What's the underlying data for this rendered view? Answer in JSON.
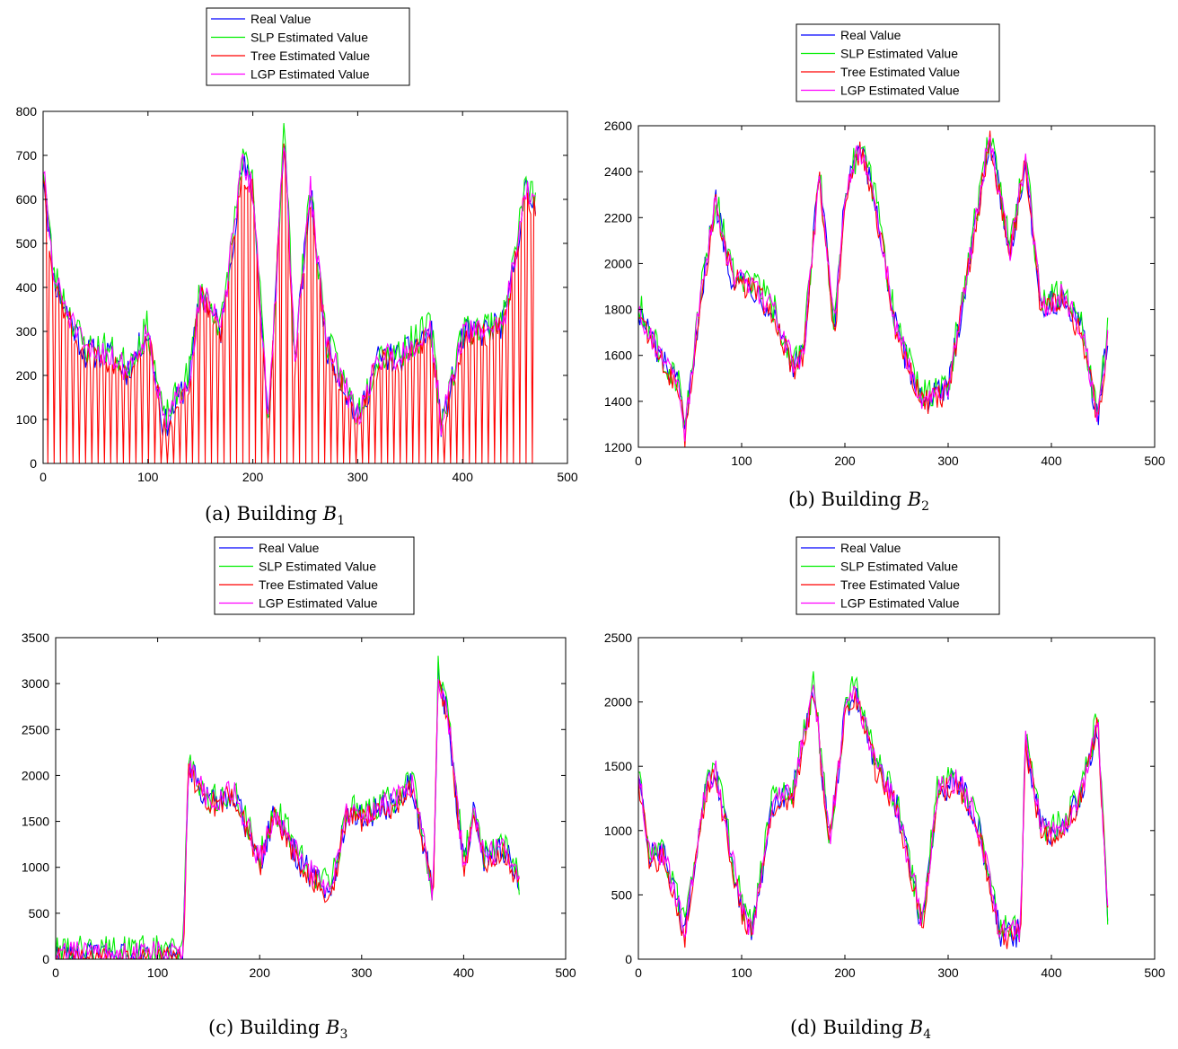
{
  "figure": {
    "panels": [
      {
        "id": "a",
        "caption_prefix": "(a) Building ",
        "caption_var": "B",
        "caption_sub": "1"
      },
      {
        "id": "b",
        "caption_prefix": "(b) Building ",
        "caption_var": "B",
        "caption_sub": "2"
      },
      {
        "id": "c",
        "caption_prefix": "(c) Building ",
        "caption_var": "B",
        "caption_sub": "3"
      },
      {
        "id": "d",
        "caption_prefix": "(d) Building ",
        "caption_var": "B",
        "caption_sub": "4"
      }
    ]
  },
  "colors": {
    "Real Value": "#0000ff",
    "SLP Estimated Value": "#00ee00",
    "Tree Estimated Value": "#ff0000",
    "LGP Estimated Value": "#ff00ff"
  },
  "chart_data": [
    {
      "type": "line",
      "title": "",
      "xlabel": "",
      "ylabel": "",
      "xlim": [
        0,
        500
      ],
      "ylim": [
        0,
        800
      ],
      "xticks": [
        0,
        100,
        200,
        300,
        400,
        500
      ],
      "yticks": [
        0,
        100,
        200,
        300,
        400,
        500,
        600,
        700,
        800
      ],
      "legend": [
        "Real Value",
        "SLP Estimated Value",
        "Tree Estimated Value",
        "LGP Estimated Value"
      ],
      "legend_placement": "top-center, above plot",
      "series_summary": {
        "Real Value": {
          "x": [
            0,
            10,
            20,
            40,
            60,
            80,
            100,
            115,
            140,
            150,
            170,
            190,
            200,
            215,
            230,
            240,
            255,
            270,
            300,
            320,
            340,
            370,
            380,
            400,
            420,
            440,
            460,
            470
          ],
          "y": [
            670,
            420,
            360,
            250,
            250,
            210,
            300,
            80,
            200,
            390,
            300,
            680,
            620,
            80,
            760,
            230,
            620,
            270,
            100,
            240,
            240,
            300,
            80,
            290,
            300,
            320,
            620,
            580
          ]
        }
      },
      "note": "Each series drops to 0 at every sample between sub-steps; traces overlap closely"
    },
    {
      "type": "line",
      "title": "",
      "xlabel": "",
      "ylabel": "",
      "xlim": [
        0,
        500
      ],
      "ylim": [
        1200,
        2600
      ],
      "xticks": [
        0,
        100,
        200,
        300,
        400,
        500
      ],
      "yticks": [
        1200,
        1400,
        1600,
        1800,
        2000,
        2200,
        2400,
        2600
      ],
      "legend": [
        "Real Value",
        "SLP Estimated Value",
        "Tree Estimated Value",
        "LGP Estimated Value"
      ],
      "legend_placement": "top-center, above plot",
      "series_summary": {
        "Real Value": {
          "x": [
            0,
            20,
            40,
            45,
            60,
            75,
            90,
            110,
            130,
            150,
            160,
            175,
            190,
            200,
            215,
            230,
            250,
            275,
            300,
            320,
            340,
            360,
            375,
            390,
            410,
            430,
            445,
            455
          ],
          "y": [
            1800,
            1600,
            1450,
            1240,
            1850,
            2270,
            1950,
            1900,
            1800,
            1550,
            1600,
            2400,
            1700,
            2300,
            2500,
            2250,
            1700,
            1400,
            1450,
            2000,
            2550,
            2050,
            2450,
            1800,
            1850,
            1700,
            1320,
            1700
          ]
        }
      },
      "note": "Traces overlap closely"
    },
    {
      "type": "line",
      "title": "",
      "xlabel": "",
      "ylabel": "",
      "xlim": [
        0,
        500
      ],
      "ylim": [
        0,
        3500
      ],
      "xticks": [
        0,
        100,
        200,
        300,
        400,
        500
      ],
      "yticks": [
        0,
        500,
        1000,
        1500,
        2000,
        2500,
        3000,
        3500
      ],
      "legend": [
        "Real Value",
        "SLP Estimated Value",
        "Tree Estimated Value",
        "LGP Estimated Value"
      ],
      "legend_placement": "top-center, above plot",
      "series_summary": {
        "Real Value": {
          "x": [
            0,
            20,
            60,
            100,
            125,
            130,
            150,
            175,
            200,
            215,
            240,
            270,
            285,
            300,
            330,
            350,
            370,
            375,
            385,
            400,
            410,
            420,
            440,
            455
          ],
          "y": [
            20,
            50,
            30,
            40,
            20,
            2100,
            1700,
            1800,
            1050,
            1600,
            1050,
            700,
            1600,
            1550,
            1700,
            1900,
            700,
            3100,
            2600,
            1000,
            1600,
            1100,
            1200,
            800
          ]
        }
      },
      "note": "Traces overlap closely"
    },
    {
      "type": "line",
      "title": "",
      "xlabel": "",
      "ylabel": "",
      "xlim": [
        0,
        500
      ],
      "ylim": [
        0,
        2500
      ],
      "xticks": [
        0,
        100,
        200,
        300,
        400,
        500
      ],
      "yticks": [
        0,
        500,
        1000,
        1500,
        2000,
        2500
      ],
      "legend": [
        "Real Value",
        "SLP Estimated Value",
        "Tree Estimated Value",
        "LGP Estimated Value"
      ],
      "legend_placement": "top-center, above plot",
      "series_summary": {
        "Real Value": {
          "x": [
            0,
            10,
            25,
            45,
            65,
            75,
            90,
            100,
            110,
            130,
            150,
            170,
            185,
            200,
            210,
            230,
            250,
            275,
            290,
            310,
            330,
            350,
            370,
            375,
            390,
            410,
            430,
            445,
            455
          ],
          "y": [
            1450,
            800,
            800,
            200,
            1300,
            1450,
            800,
            400,
            200,
            1200,
            1300,
            2100,
            900,
            1900,
            2100,
            1500,
            1200,
            250,
            1300,
            1400,
            1000,
            200,
            200,
            1700,
            1000,
            1000,
            1300,
            1850,
            250
          ]
        }
      },
      "note": "Traces overlap closely"
    }
  ]
}
